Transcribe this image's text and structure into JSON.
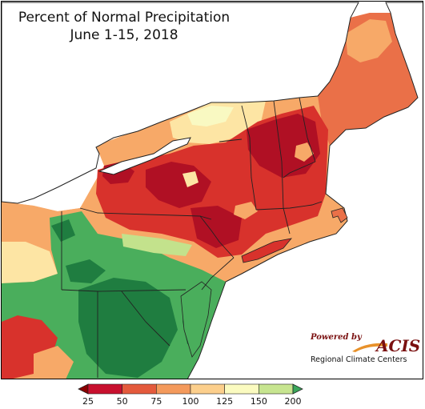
{
  "title": {
    "line1": "Percent of Normal Precipitation",
    "line2": "June 1-15, 2018"
  },
  "legend": {
    "ticks": [
      "25",
      "50",
      "75",
      "100",
      "125",
      "150",
      "200"
    ],
    "colors": [
      "#c8102e",
      "#e45a3c",
      "#f49a5c",
      "#fccf8c",
      "#fbfbc0",
      "#c7e590",
      "#3aa65a"
    ],
    "below_color": "#8b0000",
    "above_color": "#1a6b3a"
  },
  "logo": {
    "powered_by": "Powered by",
    "name": "ACIS",
    "subtitle": "Regional Climate Centers"
  },
  "palette": {
    "water": "#ffffff",
    "outline": "#222222",
    "very_dry": "#b01024",
    "dry": "#d8322c",
    "below": "#ea7048",
    "slightly_below": "#f7a968",
    "near_normal": "#fde5a4",
    "slightly_above": "#f9f9c2",
    "above": "#c3e28c",
    "wet": "#4aae5c",
    "very_wet": "#1f7d40"
  }
}
